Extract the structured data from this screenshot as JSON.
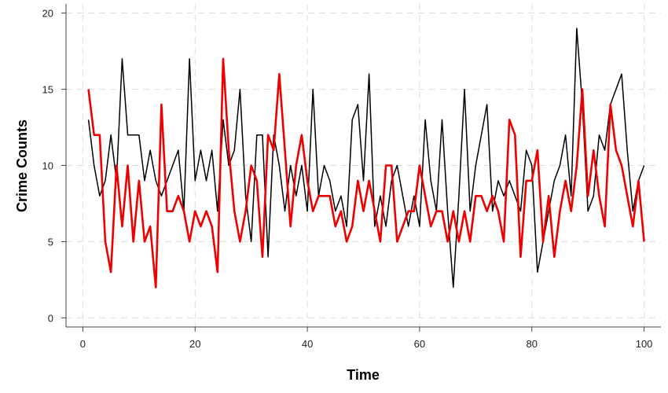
{
  "chart_data": {
    "type": "line",
    "title": "",
    "xlabel": "Time",
    "ylabel": "Crime Counts",
    "xlim": [
      -3,
      103
    ],
    "ylim": [
      -0.6,
      20.6
    ],
    "xticks": [
      0,
      20,
      40,
      60,
      80,
      100
    ],
    "yticks": [
      0,
      5,
      10,
      15,
      20
    ],
    "grid": true,
    "legend": "none",
    "x": [
      1,
      2,
      3,
      4,
      5,
      6,
      7,
      8,
      9,
      10,
      11,
      12,
      13,
      14,
      15,
      16,
      17,
      18,
      19,
      20,
      21,
      22,
      23,
      24,
      25,
      26,
      27,
      28,
      29,
      30,
      31,
      32,
      33,
      34,
      35,
      36,
      37,
      38,
      39,
      40,
      41,
      42,
      43,
      44,
      45,
      46,
      47,
      48,
      49,
      50,
      51,
      52,
      53,
      54,
      55,
      56,
      57,
      58,
      59,
      60,
      61,
      62,
      63,
      64,
      65,
      66,
      67,
      68,
      69,
      70,
      71,
      72,
      73,
      74,
      75,
      76,
      77,
      78,
      79,
      80,
      81,
      82,
      83,
      84,
      85,
      86,
      87,
      88,
      89,
      90,
      91,
      92,
      93,
      94,
      95,
      96,
      97,
      98,
      99,
      100
    ],
    "series": [
      {
        "color": "#000000",
        "values": [
          13,
          10,
          8,
          9,
          12,
          9,
          17,
          12,
          12,
          12,
          9,
          11,
          9,
          8,
          9,
          10,
          11,
          7,
          17,
          9,
          11,
          9,
          11,
          7,
          13,
          10,
          11,
          15,
          8,
          5,
          12,
          12,
          4,
          12,
          10,
          7,
          10,
          8,
          10,
          7,
          15,
          8,
          10,
          9,
          7,
          8,
          6,
          13,
          14,
          9,
          16,
          6,
          8,
          6,
          9,
          10,
          8,
          6,
          8,
          6,
          13,
          9,
          7,
          13,
          7,
          2,
          8,
          15,
          7,
          10,
          12,
          14,
          7,
          9,
          8,
          9,
          8,
          7,
          11,
          10,
          3,
          5,
          7,
          9,
          10,
          12,
          8,
          19,
          14,
          7,
          8,
          12,
          11,
          14,
          15,
          16,
          11,
          7,
          9,
          10
        ]
      },
      {
        "color": "#ee0000",
        "values": [
          15,
          12,
          12,
          5,
          3,
          10,
          6,
          10,
          5,
          9,
          5,
          6,
          2,
          14,
          7,
          7,
          8,
          7,
          5,
          7,
          6,
          7,
          6,
          3,
          17,
          11,
          7,
          5,
          7,
          10,
          9,
          4,
          12,
          11,
          16,
          11,
          6,
          10,
          12,
          9,
          7,
          8,
          8,
          8,
          6,
          7,
          5,
          6,
          9,
          7,
          9,
          7,
          5,
          10,
          10,
          5,
          6,
          7,
          7,
          10,
          8,
          6,
          7,
          7,
          5,
          7,
          5,
          7,
          5,
          8,
          8,
          7,
          8,
          7,
          5,
          13,
          12,
          4,
          9,
          9,
          11,
          5,
          8,
          4,
          7,
          9,
          7,
          10,
          15,
          8,
          11,
          8,
          6,
          14,
          11,
          10,
          8,
          6,
          9,
          5
        ]
      }
    ]
  }
}
